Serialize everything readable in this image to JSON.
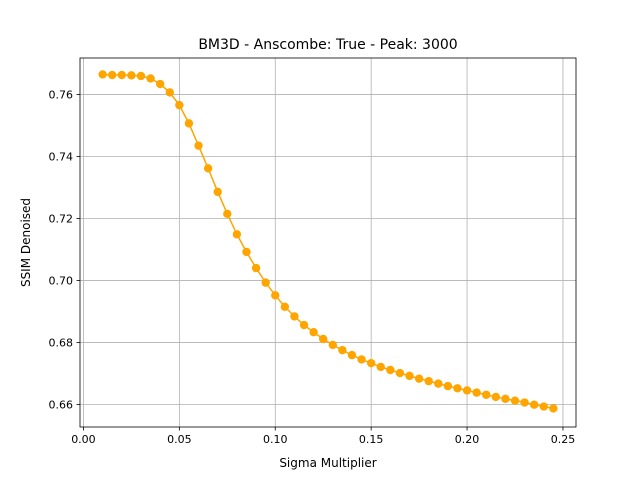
{
  "chart_data": {
    "type": "line",
    "title": "BM3D - Anscombe: True - Peak: 3000",
    "xlabel": "Sigma Multiplier",
    "ylabel": "SSIM Denoised",
    "xlim": [
      -0.0018,
      0.2568
    ],
    "ylim": [
      0.6527,
      0.7718
    ],
    "xticks": [
      0.0,
      0.05,
      0.1,
      0.15,
      0.2,
      0.25
    ],
    "xtick_labels": [
      "0.00",
      "0.05",
      "0.10",
      "0.15",
      "0.20",
      "0.25"
    ],
    "yticks": [
      0.66,
      0.68,
      0.7,
      0.72,
      0.74,
      0.76
    ],
    "ytick_labels": [
      "0.66",
      "0.68",
      "0.70",
      "0.72",
      "0.74",
      "0.76"
    ],
    "grid": true,
    "color": "#ffa500",
    "markers": "circle",
    "series": [
      {
        "x": [
          0.01,
          0.015,
          0.02,
          0.025,
          0.03,
          0.035,
          0.04,
          0.045,
          0.05,
          0.055,
          0.06,
          0.065,
          0.07,
          0.075,
          0.08,
          0.085,
          0.09,
          0.095,
          0.1,
          0.105,
          0.11,
          0.115,
          0.12,
          0.125,
          0.13,
          0.135,
          0.14,
          0.145,
          0.15,
          0.155,
          0.16,
          0.165,
          0.17,
          0.175,
          0.18,
          0.185,
          0.19,
          0.195,
          0.2,
          0.205,
          0.21,
          0.215,
          0.22,
          0.225,
          0.23,
          0.235,
          0.24,
          0.245
        ],
        "y": [
          0.7665,
          0.7663,
          0.7663,
          0.7662,
          0.766,
          0.7652,
          0.7634,
          0.7607,
          0.7566,
          0.7507,
          0.7435,
          0.7362,
          0.7286,
          0.7215,
          0.7149,
          0.7092,
          0.704,
          0.6993,
          0.6952,
          0.6915,
          0.6884,
          0.6856,
          0.6833,
          0.6811,
          0.6792,
          0.6775,
          0.6759,
          0.6745,
          0.6733,
          0.6721,
          0.6711,
          0.6701,
          0.6692,
          0.6683,
          0.6675,
          0.6667,
          0.6659,
          0.6652,
          0.6645,
          0.6638,
          0.6631,
          0.6624,
          0.6618,
          0.6612,
          0.6606,
          0.6599,
          0.6593,
          0.6587
        ]
      }
    ]
  }
}
